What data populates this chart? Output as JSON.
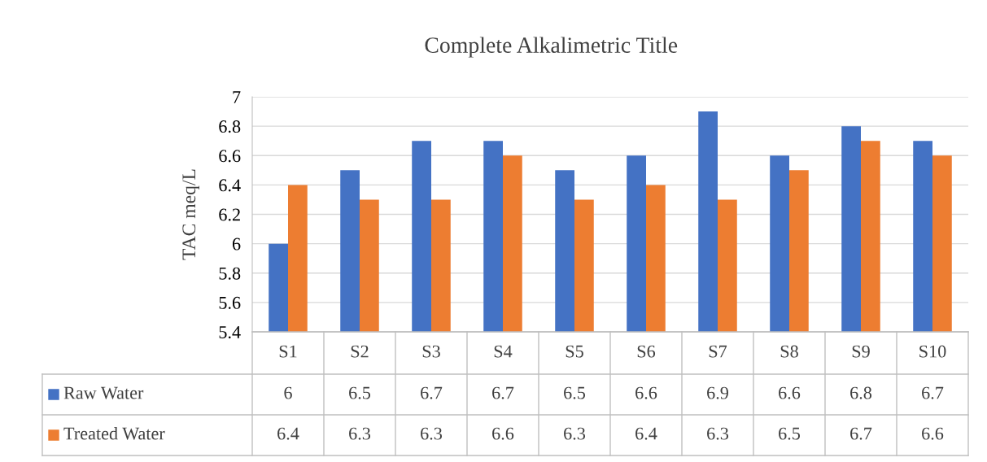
{
  "chart_data": {
    "type": "bar",
    "title": "Complete Alkalimetric Title",
    "ylabel": "TAC meq/L",
    "categories": [
      "S1",
      "S2",
      "S3",
      "S4",
      "S5",
      "S6",
      "S7",
      "S8",
      "S9",
      "S10"
    ],
    "series": [
      {
        "name": "Raw Water",
        "color": "#4472c4",
        "values": [
          6,
          6.5,
          6.7,
          6.7,
          6.5,
          6.6,
          6.9,
          6.6,
          6.8,
          6.7
        ]
      },
      {
        "name": "Treated Water",
        "color": "#ed7d31",
        "values": [
          6.4,
          6.3,
          6.3,
          6.6,
          6.3,
          6.4,
          6.3,
          6.5,
          6.7,
          6.6
        ]
      }
    ],
    "ylim": [
      5.4,
      7
    ],
    "yticks": [
      5.4,
      5.6,
      5.8,
      6,
      6.2,
      6.4,
      6.6,
      6.8,
      7
    ],
    "grid": "y",
    "legend": "bottom",
    "data_labels": true
  }
}
